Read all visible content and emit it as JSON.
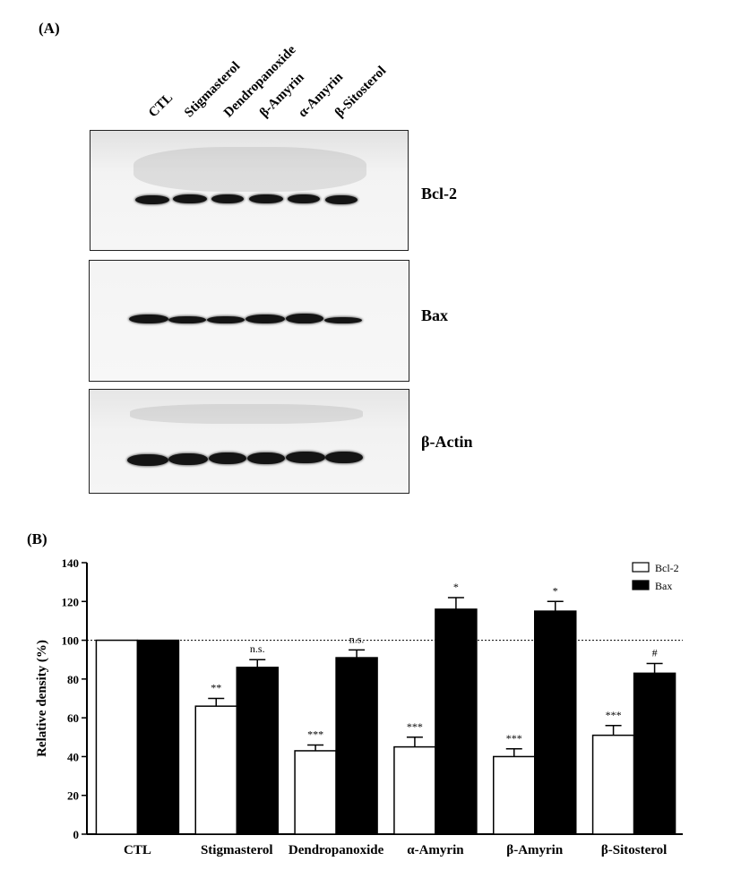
{
  "panels": {
    "a_label": "(A)",
    "b_label": "(B)"
  },
  "western_blot": {
    "lanes": [
      "CTL",
      "Stigmasterol",
      "Dendropanoxide",
      "β-Amyrin",
      "α-Amyrin",
      "β-Sitosterol"
    ],
    "blots": [
      "Bcl-2",
      "Bax",
      "β-Actin"
    ]
  },
  "chart_data": {
    "type": "bar",
    "categories": [
      "CTL",
      "Stigmasterol",
      "Dendropanoxide",
      "α-Amyrin",
      "β-Amyrin",
      "β-Sitosterol"
    ],
    "series": [
      {
        "name": "Bcl-2",
        "color": "#ffffff",
        "values": [
          100,
          66,
          43,
          45,
          40,
          51
        ],
        "errors": [
          0,
          4,
          3,
          5,
          4,
          5
        ],
        "annotations": [
          "",
          "**",
          "***",
          "***",
          "***",
          "***"
        ]
      },
      {
        "name": "Bax",
        "color": "#000000",
        "values": [
          100,
          86,
          91,
          116,
          115,
          83
        ],
        "errors": [
          0,
          4,
          4,
          6,
          5,
          5
        ],
        "annotations": [
          "",
          "n.s.",
          "n.s.",
          "*",
          "*",
          "#"
        ]
      }
    ],
    "ylabel": "Relative density (%)",
    "ylim": [
      0,
      140
    ],
    "yticks": [
      0,
      20,
      40,
      60,
      80,
      100,
      120,
      140
    ],
    "reference_line": 100,
    "legend_position": "top-right",
    "grid": false
  }
}
